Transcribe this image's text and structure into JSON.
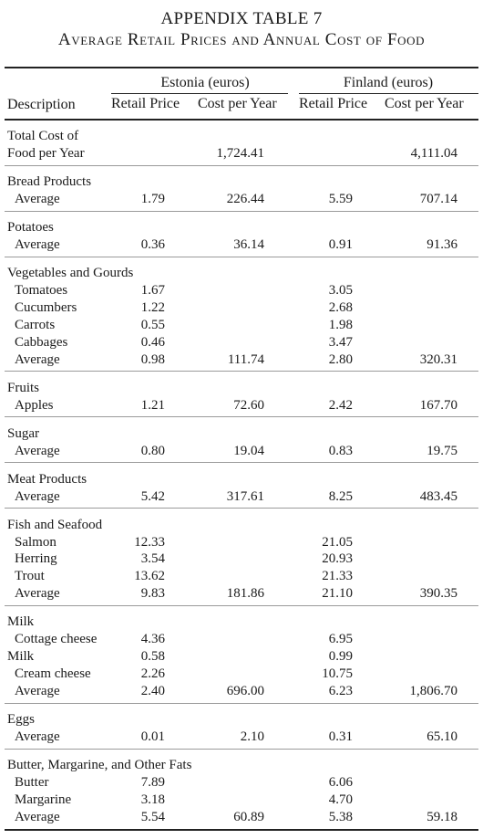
{
  "title": "APPENDIX TABLE 7",
  "subtitle": "Average Retail Prices and Annual Cost of Food",
  "columns": {
    "description": "Description",
    "group_estonia": "Estonia (euros)",
    "group_finland": "Finland (euros)",
    "retail_price": "Retail Price",
    "cost_per_year": "Cost per Year"
  },
  "sections": [
    {
      "rows": [
        {
          "label": "Total Cost of",
          "indent": false
        },
        {
          "label": "Food per Year",
          "indent": false,
          "ee_cost": "1,724.41",
          "fi_cost": "4,111.04"
        }
      ]
    },
    {
      "rows": [
        {
          "label": "Bread Products",
          "indent": false
        },
        {
          "label": "Average",
          "indent": true,
          "ee_price": "1.79",
          "ee_cost": "226.44",
          "fi_price": "5.59",
          "fi_cost": "707.14"
        }
      ]
    },
    {
      "rows": [
        {
          "label": "Potatoes",
          "indent": false
        },
        {
          "label": "Average",
          "indent": true,
          "ee_price": "0.36",
          "ee_cost": "36.14",
          "fi_price": "0.91",
          "fi_cost": "91.36"
        }
      ]
    },
    {
      "rows": [
        {
          "label": "Vegetables and Gourds",
          "indent": false
        },
        {
          "label": "Tomatoes",
          "indent": true,
          "ee_price": "1.67",
          "fi_price": "3.05"
        },
        {
          "label": "Cucumbers",
          "indent": true,
          "ee_price": "1.22",
          "fi_price": "2.68"
        },
        {
          "label": "Carrots",
          "indent": true,
          "ee_price": "0.55",
          "fi_price": "1.98"
        },
        {
          "label": "Cabbages",
          "indent": true,
          "ee_price": "0.46",
          "fi_price": "3.47"
        },
        {
          "label": "Average",
          "indent": true,
          "ee_price": "0.98",
          "ee_cost": "111.74",
          "fi_price": "2.80",
          "fi_cost": "320.31"
        }
      ]
    },
    {
      "rows": [
        {
          "label": "Fruits",
          "indent": false
        },
        {
          "label": "Apples",
          "indent": true,
          "ee_price": "1.21",
          "ee_cost": "72.60",
          "fi_price": "2.42",
          "fi_cost": "167.70"
        }
      ]
    },
    {
      "rows": [
        {
          "label": "Sugar",
          "indent": false
        },
        {
          "label": "Average",
          "indent": true,
          "ee_price": "0.80",
          "ee_cost": "19.04",
          "fi_price": "0.83",
          "fi_cost": "19.75"
        }
      ]
    },
    {
      "rows": [
        {
          "label": "Meat Products",
          "indent": false
        },
        {
          "label": "Average",
          "indent": true,
          "ee_price": "5.42",
          "ee_cost": "317.61",
          "fi_price": "8.25",
          "fi_cost": "483.45"
        }
      ]
    },
    {
      "rows": [
        {
          "label": "Fish and Seafood",
          "indent": false
        },
        {
          "label": "Salmon",
          "indent": true,
          "ee_price": "12.33",
          "fi_price": "21.05"
        },
        {
          "label": "Herring",
          "indent": true,
          "ee_price": "3.54",
          "fi_price": "20.93"
        },
        {
          "label": "Trout",
          "indent": true,
          "ee_price": "13.62",
          "fi_price": "21.33"
        },
        {
          "label": "Average",
          "indent": true,
          "ee_price": "9.83",
          "ee_cost": "181.86",
          "fi_price": "21.10",
          "fi_cost": "390.35"
        }
      ]
    },
    {
      "rows": [
        {
          "label": "Milk",
          "indent": false
        },
        {
          "label": "Cottage cheese",
          "indent": true,
          "ee_price": "4.36",
          "fi_price": "6.95"
        },
        {
          "label": "Milk",
          "indent": false,
          "ee_price": "0.58",
          "fi_price": "0.99"
        },
        {
          "label": "Cream cheese",
          "indent": true,
          "ee_price": "2.26",
          "fi_price": "10.75"
        },
        {
          "label": "Average",
          "indent": true,
          "ee_price": "2.40",
          "ee_cost": "696.00",
          "fi_price": "6.23",
          "fi_cost": "1,806.70"
        }
      ]
    },
    {
      "rows": [
        {
          "label": "Eggs",
          "indent": false
        },
        {
          "label": "Average",
          "indent": true,
          "ee_price": "0.01",
          "ee_cost": "2.10",
          "fi_price": "0.31",
          "fi_cost": "65.10"
        }
      ]
    },
    {
      "rows": [
        {
          "label": "Butter, Margarine, and Other Fats",
          "indent": false
        },
        {
          "label": "Butter",
          "indent": true,
          "ee_price": "7.89",
          "fi_price": "6.06"
        },
        {
          "label": "Margarine",
          "indent": true,
          "ee_price": "3.18",
          "fi_price": "4.70"
        },
        {
          "label": "Average",
          "indent": true,
          "ee_price": "5.54",
          "ee_cost": "60.89",
          "fi_price": "5.38",
          "fi_cost": "59.18"
        }
      ]
    }
  ]
}
